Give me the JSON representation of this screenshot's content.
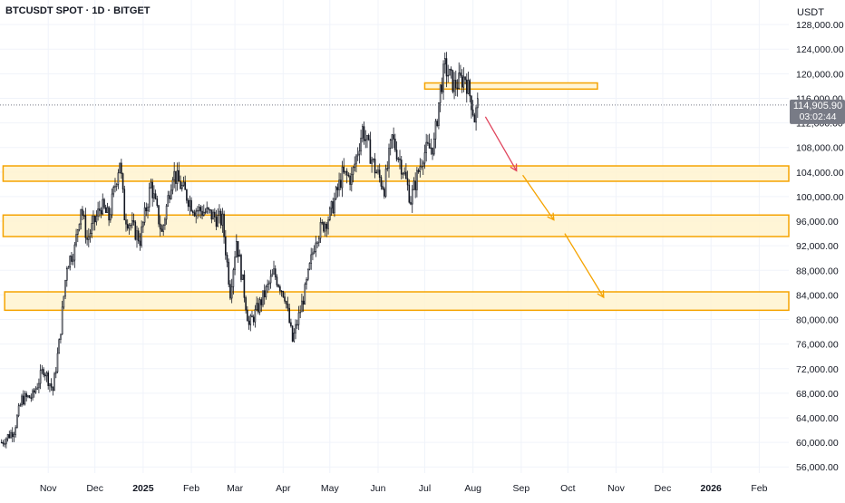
{
  "header": {
    "symbol": "BTCUSDT SPOT · 1D · BITGET",
    "unit": "USDT"
  },
  "price_tag": {
    "price": "114,905.90",
    "countdown": "03:02:44",
    "color": "#787b86"
  },
  "colors": {
    "zone": "#f5a300",
    "zone_fill": "#fff3cf",
    "bull": "#131722",
    "arrow_red": "#e0455d",
    "arrow_orange": "#f5a300",
    "grid": "#f0f3fa"
  },
  "chart_data": {
    "type": "candlestick",
    "title": "BTCUSDT SPOT · 1D · BITGET",
    "y_unit": "USDT",
    "ylim": [
      55000,
      132000
    ],
    "y_ticks": [
      {
        "value": 128000,
        "label": "128,000.00"
      },
      {
        "value": 124000,
        "label": "124,000.00"
      },
      {
        "value": 120000,
        "label": "120,000.00"
      },
      {
        "value": 116000,
        "label": "116,000.00"
      },
      {
        "value": 112000,
        "label": "112,000.00"
      },
      {
        "value": 108000,
        "label": "108,000.00"
      },
      {
        "value": 104000,
        "label": "104,000.00"
      },
      {
        "value": 100000,
        "label": "100,000.00"
      },
      {
        "value": 96000,
        "label": "96,000.00"
      },
      {
        "value": 92000,
        "label": "92,000.00"
      },
      {
        "value": 88000,
        "label": "88,000.00"
      },
      {
        "value": 84000,
        "label": "84,000.00"
      },
      {
        "value": 80000,
        "label": "80,000.00"
      },
      {
        "value": 76000,
        "label": "76,000.00"
      },
      {
        "value": 72000,
        "label": "72,000.00"
      },
      {
        "value": 68000,
        "label": "68,000.00"
      },
      {
        "value": 64000,
        "label": "64,000.00"
      },
      {
        "value": 60000,
        "label": "60,000.00"
      },
      {
        "value": 56000,
        "label": "56,000.00"
      }
    ],
    "x_ticks": [
      {
        "label": "Nov",
        "date": "2024-11-01",
        "bold": false
      },
      {
        "label": "Dec",
        "date": "2024-12-01",
        "bold": false
      },
      {
        "label": "2025",
        "date": "2025-01-01",
        "bold": true
      },
      {
        "label": "Feb",
        "date": "2025-02-01",
        "bold": false
      },
      {
        "label": "Mar",
        "date": "2025-03-01",
        "bold": false
      },
      {
        "label": "Apr",
        "date": "2025-04-01",
        "bold": false
      },
      {
        "label": "May",
        "date": "2025-05-01",
        "bold": false
      },
      {
        "label": "Jun",
        "date": "2025-06-01",
        "bold": false
      },
      {
        "label": "Jul",
        "date": "2025-07-01",
        "bold": false
      },
      {
        "label": "Aug",
        "date": "2025-08-01",
        "bold": false
      },
      {
        "label": "Sep",
        "date": "2025-09-01",
        "bold": false
      },
      {
        "label": "Oct",
        "date": "2025-10-01",
        "bold": false
      },
      {
        "label": "Nov",
        "date": "2025-11-01",
        "bold": false
      },
      {
        "label": "Dec",
        "date": "2025-12-01",
        "bold": false
      },
      {
        "label": "2026",
        "date": "2026-01-01",
        "bold": true
      },
      {
        "label": "Feb",
        "date": "2026-02-01",
        "bold": false
      }
    ],
    "x_range": [
      "2024-10-01",
      "2026-02-20"
    ],
    "price_path": [
      [
        "2024-10-02",
        60000
      ],
      [
        "2024-10-10",
        62000
      ],
      [
        "2024-10-15",
        67000
      ],
      [
        "2024-10-22",
        67500
      ],
      [
        "2024-10-29",
        72000
      ],
      [
        "2024-11-04",
        68500
      ],
      [
        "2024-11-08",
        76000
      ],
      [
        "2024-11-13",
        89000
      ],
      [
        "2024-11-18",
        91500
      ],
      [
        "2024-11-22",
        98500
      ],
      [
        "2024-11-26",
        93000
      ],
      [
        "2024-12-05",
        98500
      ],
      [
        "2024-12-10",
        96500
      ],
      [
        "2024-12-17",
        106000
      ],
      [
        "2024-12-20",
        97000
      ],
      [
        "2024-12-30",
        93000
      ],
      [
        "2025-01-06",
        102000
      ],
      [
        "2025-01-13",
        94000
      ],
      [
        "2025-01-20",
        104000
      ],
      [
        "2025-01-27",
        101000
      ],
      [
        "2025-02-03",
        98000
      ],
      [
        "2025-02-10",
        97500
      ],
      [
        "2025-02-21",
        96000
      ],
      [
        "2025-02-26",
        84500
      ],
      [
        "2025-03-02",
        93000
      ],
      [
        "2025-03-10",
        79000
      ],
      [
        "2025-03-18",
        83000
      ],
      [
        "2025-03-26",
        87500
      ],
      [
        "2025-04-02",
        84000
      ],
      [
        "2025-04-07",
        76500
      ],
      [
        "2025-04-15",
        84500
      ],
      [
        "2025-04-22",
        93500
      ],
      [
        "2025-05-01",
        97000
      ],
      [
        "2025-05-09",
        103500
      ],
      [
        "2025-05-15",
        103000
      ],
      [
        "2025-05-22",
        111000
      ],
      [
        "2025-05-30",
        104500
      ],
      [
        "2025-06-05",
        101500
      ],
      [
        "2025-06-10",
        109500
      ],
      [
        "2025-06-17",
        104500
      ],
      [
        "2025-06-22",
        99500
      ],
      [
        "2025-06-30",
        107000
      ],
      [
        "2025-07-07",
        108500
      ],
      [
        "2025-07-11",
        117500
      ],
      [
        "2025-07-14",
        121000
      ],
      [
        "2025-07-20",
        118000
      ],
      [
        "2025-07-27",
        119500
      ],
      [
        "2025-07-31",
        115500
      ],
      [
        "2025-08-02",
        112800
      ],
      [
        "2025-08-04",
        114900
      ]
    ],
    "zones": [
      {
        "name": "top-zone",
        "from": "2025-07-01",
        "to": "2025-10-20",
        "low": 117500,
        "high": 118500
      },
      {
        "name": "zone-104k",
        "from": "2024-10-03",
        "to": "2026-02-20",
        "low": 102500,
        "high": 105000
      },
      {
        "name": "zone-96k",
        "from": "2024-10-03",
        "to": "2026-02-20",
        "low": 93500,
        "high": 97000
      },
      {
        "name": "zone-84k",
        "from": "2024-10-04",
        "to": "2026-02-20",
        "low": 81500,
        "high": 84500
      }
    ],
    "arrows": [
      {
        "name": "arrow-1",
        "from": [
          "2025-08-09",
          113000
        ],
        "to": [
          "2025-08-29",
          104200
        ],
        "color": "red"
      },
      {
        "name": "arrow-2",
        "from": [
          "2025-09-02",
          103500
        ],
        "to": [
          "2025-09-22",
          96200
        ],
        "color": "orange"
      },
      {
        "name": "arrow-3",
        "from": [
          "2025-09-29",
          94000
        ],
        "to": [
          "2025-10-24",
          83600
        ],
        "color": "orange"
      }
    ],
    "current_price": 114905.9
  }
}
